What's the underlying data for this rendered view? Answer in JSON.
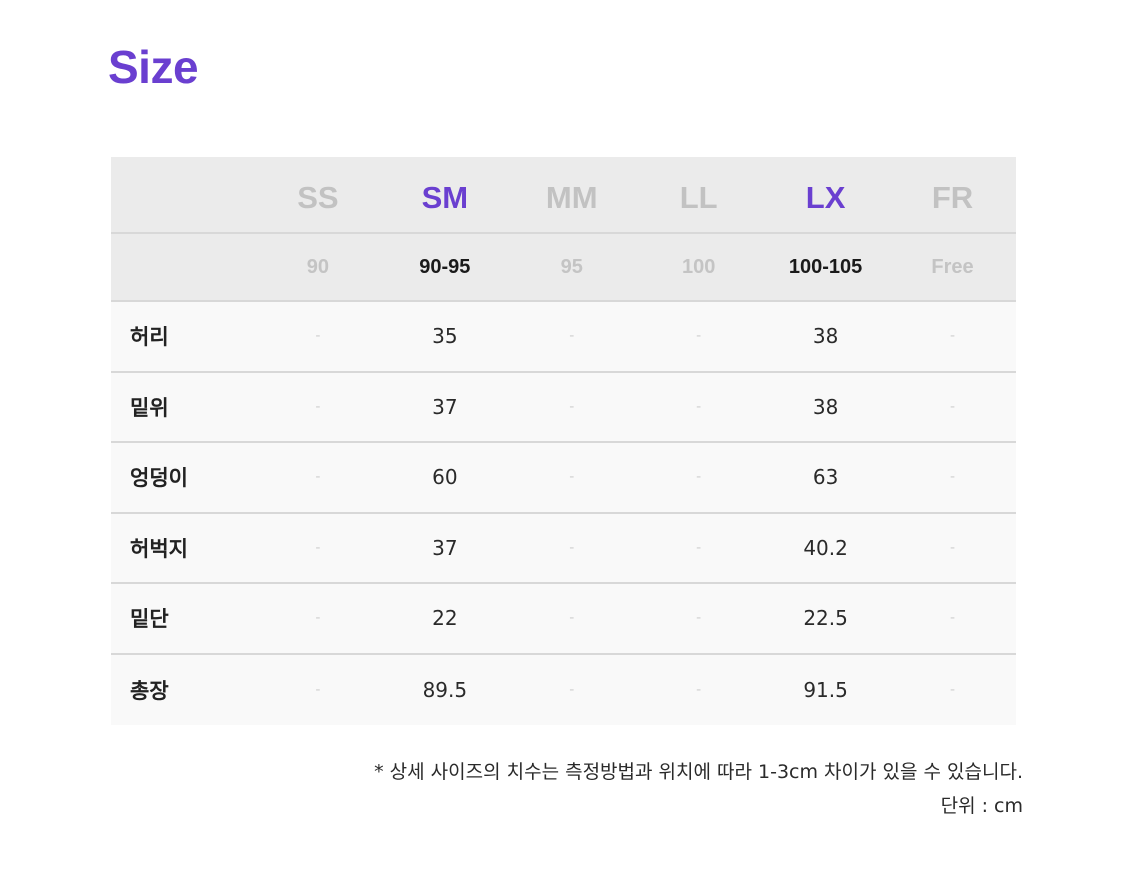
{
  "title": "Size",
  "colors": {
    "accent": "#6a3fd0",
    "header_bg": "#ebebeb",
    "row_bg": "#f9f9f9",
    "inactive": "#c2c2c2"
  },
  "sizes": [
    {
      "code": "SS",
      "range": "90",
      "active": false
    },
    {
      "code": "SM",
      "range": "90-95",
      "active": true
    },
    {
      "code": "MM",
      "range": "95",
      "active": false
    },
    {
      "code": "LL",
      "range": "100",
      "active": false
    },
    {
      "code": "LX",
      "range": "100-105",
      "active": true
    },
    {
      "code": "FR",
      "range": "Free",
      "active": false
    }
  ],
  "rows": [
    {
      "label": "허리",
      "values": [
        "-",
        "35",
        "-",
        "-",
        "38",
        "-"
      ]
    },
    {
      "label": "밑위",
      "values": [
        "-",
        "37",
        "-",
        "-",
        "38",
        "-"
      ]
    },
    {
      "label": "엉덩이",
      "values": [
        "-",
        "60",
        "-",
        "-",
        "63",
        "-"
      ]
    },
    {
      "label": "허벅지",
      "values": [
        "-",
        "37",
        "-",
        "-",
        "40.2",
        "-"
      ]
    },
    {
      "label": "밑단",
      "values": [
        "-",
        "22",
        "-",
        "-",
        "22.5",
        "-"
      ]
    },
    {
      "label": "총장",
      "values": [
        "-",
        "89.5",
        "-",
        "-",
        "91.5",
        "-"
      ]
    }
  ],
  "note": {
    "disclaimer": "* 상세 사이즈의 치수는 측정방법과 위치에 따라 1-3cm 차이가 있을 수 있습니다.",
    "unit": "단위 : cm"
  }
}
